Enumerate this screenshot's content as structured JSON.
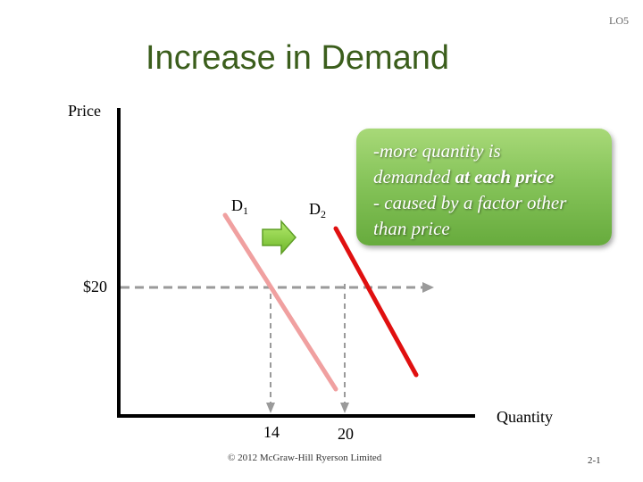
{
  "slide": {
    "lo": "LO5",
    "title": "Increase in Demand",
    "footer": "© 2012 McGraw-Hill Ryerson Limited",
    "page_number": "2-1"
  },
  "graph": {
    "y_axis_label": "Price",
    "x_axis_label": "Quantity",
    "price_tick": "$20",
    "quantity_ticks": [
      "14",
      "20"
    ],
    "d1_letter": "D",
    "d1_sub": "1",
    "d2_letter": "D",
    "d2_sub": "2"
  },
  "note": {
    "line1": "-more quantity is",
    "line2_pre": "demanded ",
    "line2_bold": "at each price",
    "line3": "- caused by a factor other",
    "line4": "than price"
  },
  "colors": {
    "title": "#3b5e1c",
    "d1_curve": "#f0a0a0",
    "d2_curve": "#e01010",
    "dashed_guide": "#9a9a9a",
    "arrow_fill": "#8ad13a",
    "note_box": "#86c45a"
  }
}
